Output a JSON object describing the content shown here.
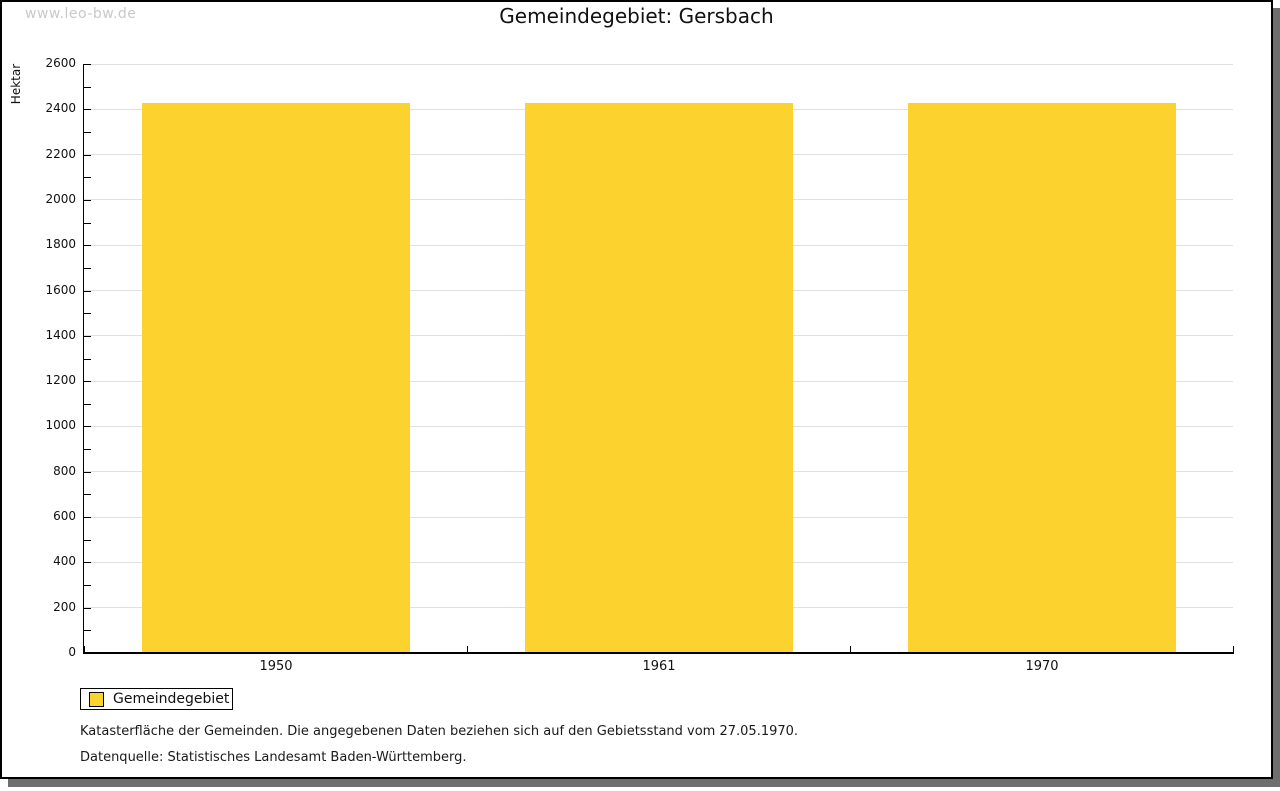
{
  "watermark": "www.leo-bw.de",
  "title": "Gemeindegebiet: Gersbach",
  "legend": {
    "label": "Gemeindegebiet"
  },
  "notes": [
    "Katasterfläche der Gemeinden. Die angegebenen Daten beziehen sich auf den Gebietsstand vom 27.05.1970.",
    "Datenquelle: Statistisches Landesamt Baden-Württemberg."
  ],
  "colors": {
    "bar": "#FCD32E",
    "grid": "#E0E0E0",
    "axis": "#000000",
    "watermark": "#C9C9C9",
    "shadow": "#6E6E6E"
  },
  "chart_data": {
    "type": "bar",
    "title": "Gemeindegebiet: Gersbach",
    "categories": [
      "1950",
      "1961",
      "1970"
    ],
    "values": [
      2430,
      2430,
      2430
    ],
    "series_name": "Gemeindegebiet",
    "xlabel": "",
    "ylabel": "Hektar",
    "ylim": [
      0,
      2600
    ],
    "ytick_major": 200,
    "ytick_minor": 100,
    "grid": true,
    "legend_position": "bottom-left",
    "bar_width_fraction": 0.7
  }
}
